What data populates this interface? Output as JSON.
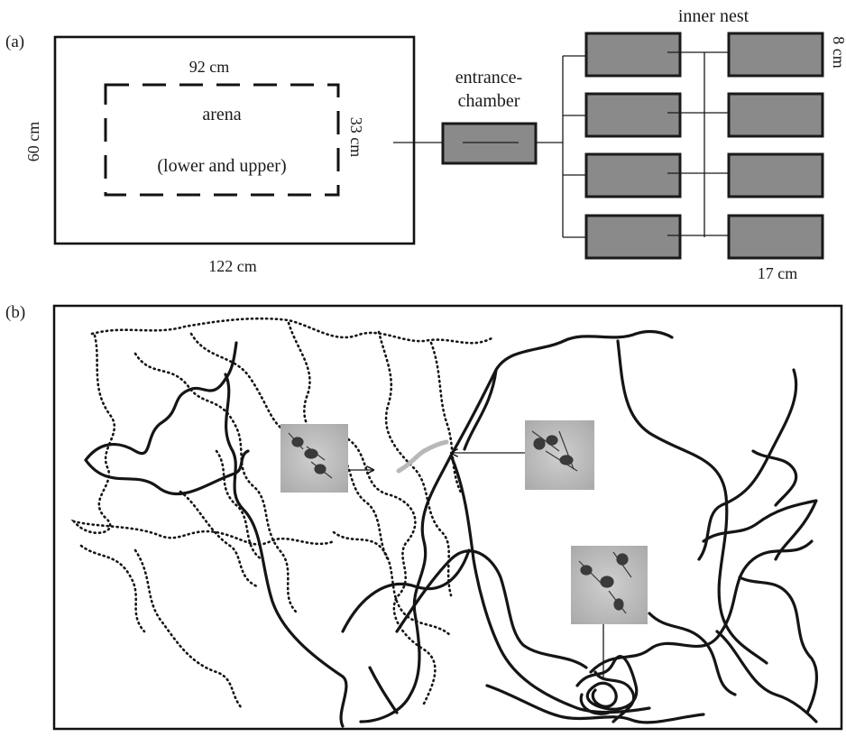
{
  "panel_a": {
    "label": "(a)",
    "outer_height": "60 cm",
    "outer_width": "122 cm",
    "arena_width": "92 cm",
    "arena_height": "33 cm",
    "arena_label": "arena",
    "arena_sublabel": "(lower and upper)",
    "entrance_line1": "entrance-",
    "entrance_line2": "chamber",
    "inner_nest": "inner nest",
    "chamber_height": "8 cm",
    "chamber_width": "17 cm"
  },
  "panel_b": {
    "label": "(b)",
    "photos": [
      "ant-photo-1",
      "ant-photo-2",
      "ant-photo-3"
    ]
  },
  "colors": {
    "chamber_fill": "#8a8a8a",
    "trail": "#151515",
    "grey_trail": "#b8b8b8"
  }
}
